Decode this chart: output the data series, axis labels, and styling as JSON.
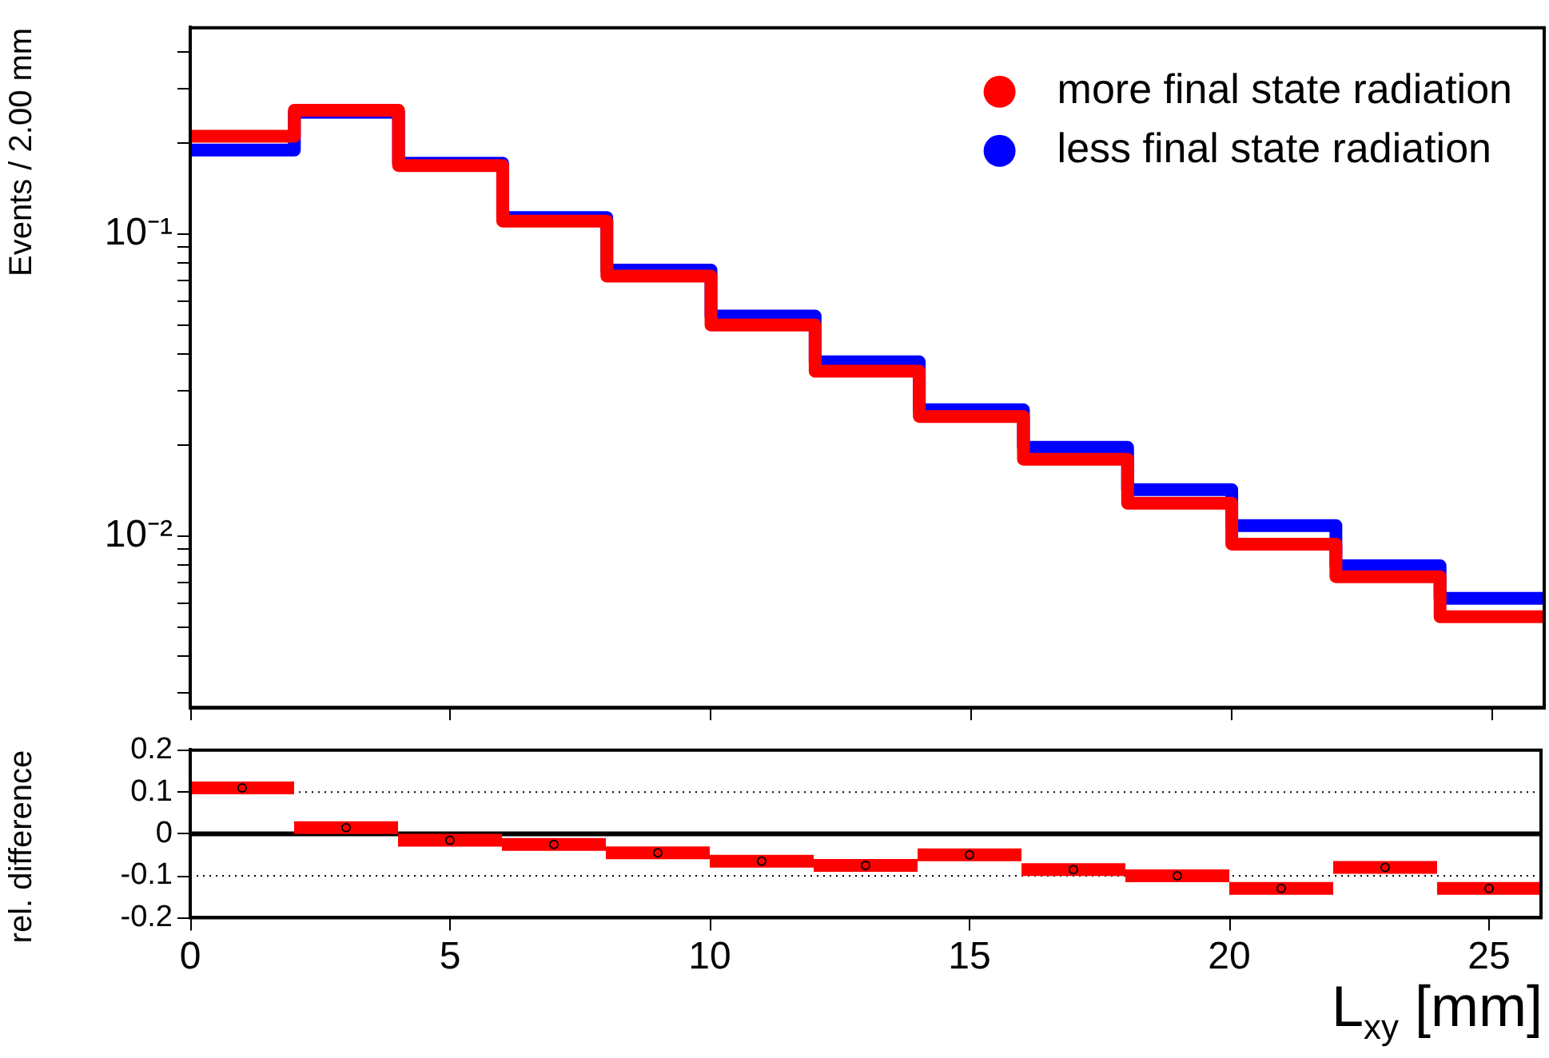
{
  "chart_data": [
    {
      "type": "histogram",
      "ylabel": "Events / 2.00 mm",
      "log": true,
      "legend": "top right",
      "tick_labels": "y",
      "bins": [
        0,
        2,
        4,
        6,
        8,
        10,
        12,
        14,
        16,
        18,
        20,
        22,
        24,
        26
      ],
      "series": [
        {
          "name": "more final state radiation",
          "color": "#ff0000",
          "values": [
            0.21,
            0.256,
            0.168,
            0.11,
            0.0723,
            0.0498,
            0.035,
            0.0248,
            0.0179,
            0.0128,
            0.00937,
            0.00731,
            0.00539
          ]
        },
        {
          "name": "less final state radiation",
          "color": "#0000ff",
          "values": [
            0.189,
            0.252,
            0.171,
            0.113,
            0.0757,
            0.0533,
            0.0376,
            0.0261,
            0.0196,
            0.0142,
            0.0108,
            0.00795,
            0.0062
          ]
        }
      ],
      "xlim": [
        0,
        26
      ],
      "xticks": [
        0,
        5,
        10,
        15,
        20,
        25
      ],
      "ylim": [
        0.0027,
        0.48
      ],
      "yticks": [
        {
          "value": 0.003,
          "label": null
        },
        {
          "value": 0.004,
          "label": null
        },
        {
          "value": 0.005,
          "label": null
        },
        {
          "value": 0.006,
          "label": null
        },
        {
          "value": 0.007,
          "label": null
        },
        {
          "value": 0.008,
          "label": null
        },
        {
          "value": 0.009,
          "label": null
        },
        {
          "value": 0.01,
          "label": "10⁻²"
        },
        {
          "value": 0.02,
          "label": null
        },
        {
          "value": 0.03,
          "label": null
        },
        {
          "value": 0.04,
          "label": null
        },
        {
          "value": 0.05,
          "label": null
        },
        {
          "value": 0.06,
          "label": null
        },
        {
          "value": 0.07,
          "label": null
        },
        {
          "value": 0.08,
          "label": null
        },
        {
          "value": 0.09,
          "label": null
        },
        {
          "value": 0.1,
          "label": "10⁻¹"
        },
        {
          "value": 0.2,
          "label": null
        },
        {
          "value": 0.3,
          "label": null
        },
        {
          "value": 0.4,
          "label": null
        }
      ],
      "grid": false
    },
    {
      "type": "scatter",
      "xlabel": "L$_{xy}$ [mm]",
      "ylabel": "rel. difference",
      "marker": "circle",
      "x": [
        1,
        3,
        5,
        7,
        9,
        11,
        13,
        15,
        17,
        19,
        21,
        23,
        25
      ],
      "series": [
        {
          "color": "#ff0000",
          "values": [
            0.11,
            0.015,
            -0.015,
            -0.025,
            -0.045,
            -0.065,
            -0.075,
            -0.05,
            -0.085,
            -0.1,
            -0.13,
            -0.08,
            -0.13
          ],
          "xerrors": [
            1,
            1,
            1,
            1,
            1,
            1,
            1,
            1,
            1,
            1,
            1,
            1,
            1
          ]
        }
      ],
      "xlim": [
        0,
        26
      ],
      "xticks": [
        0,
        5,
        10,
        15,
        20,
        25
      ],
      "ylim": [
        -0.2,
        0.2
      ],
      "yticks": [
        -0.2,
        -0.1,
        0,
        0.1,
        0.2
      ],
      "ref_lines": [
        {
          "axis": "y",
          "value": 0,
          "color": "#000000",
          "line_style": "solid"
        },
        {
          "axis": "y",
          "value": 0.1,
          "color": "#000000",
          "line_style": "dotted"
        },
        {
          "axis": "y",
          "value": -0.1,
          "color": "#000000",
          "line_style": "dotted"
        }
      ],
      "grid": false
    }
  ]
}
